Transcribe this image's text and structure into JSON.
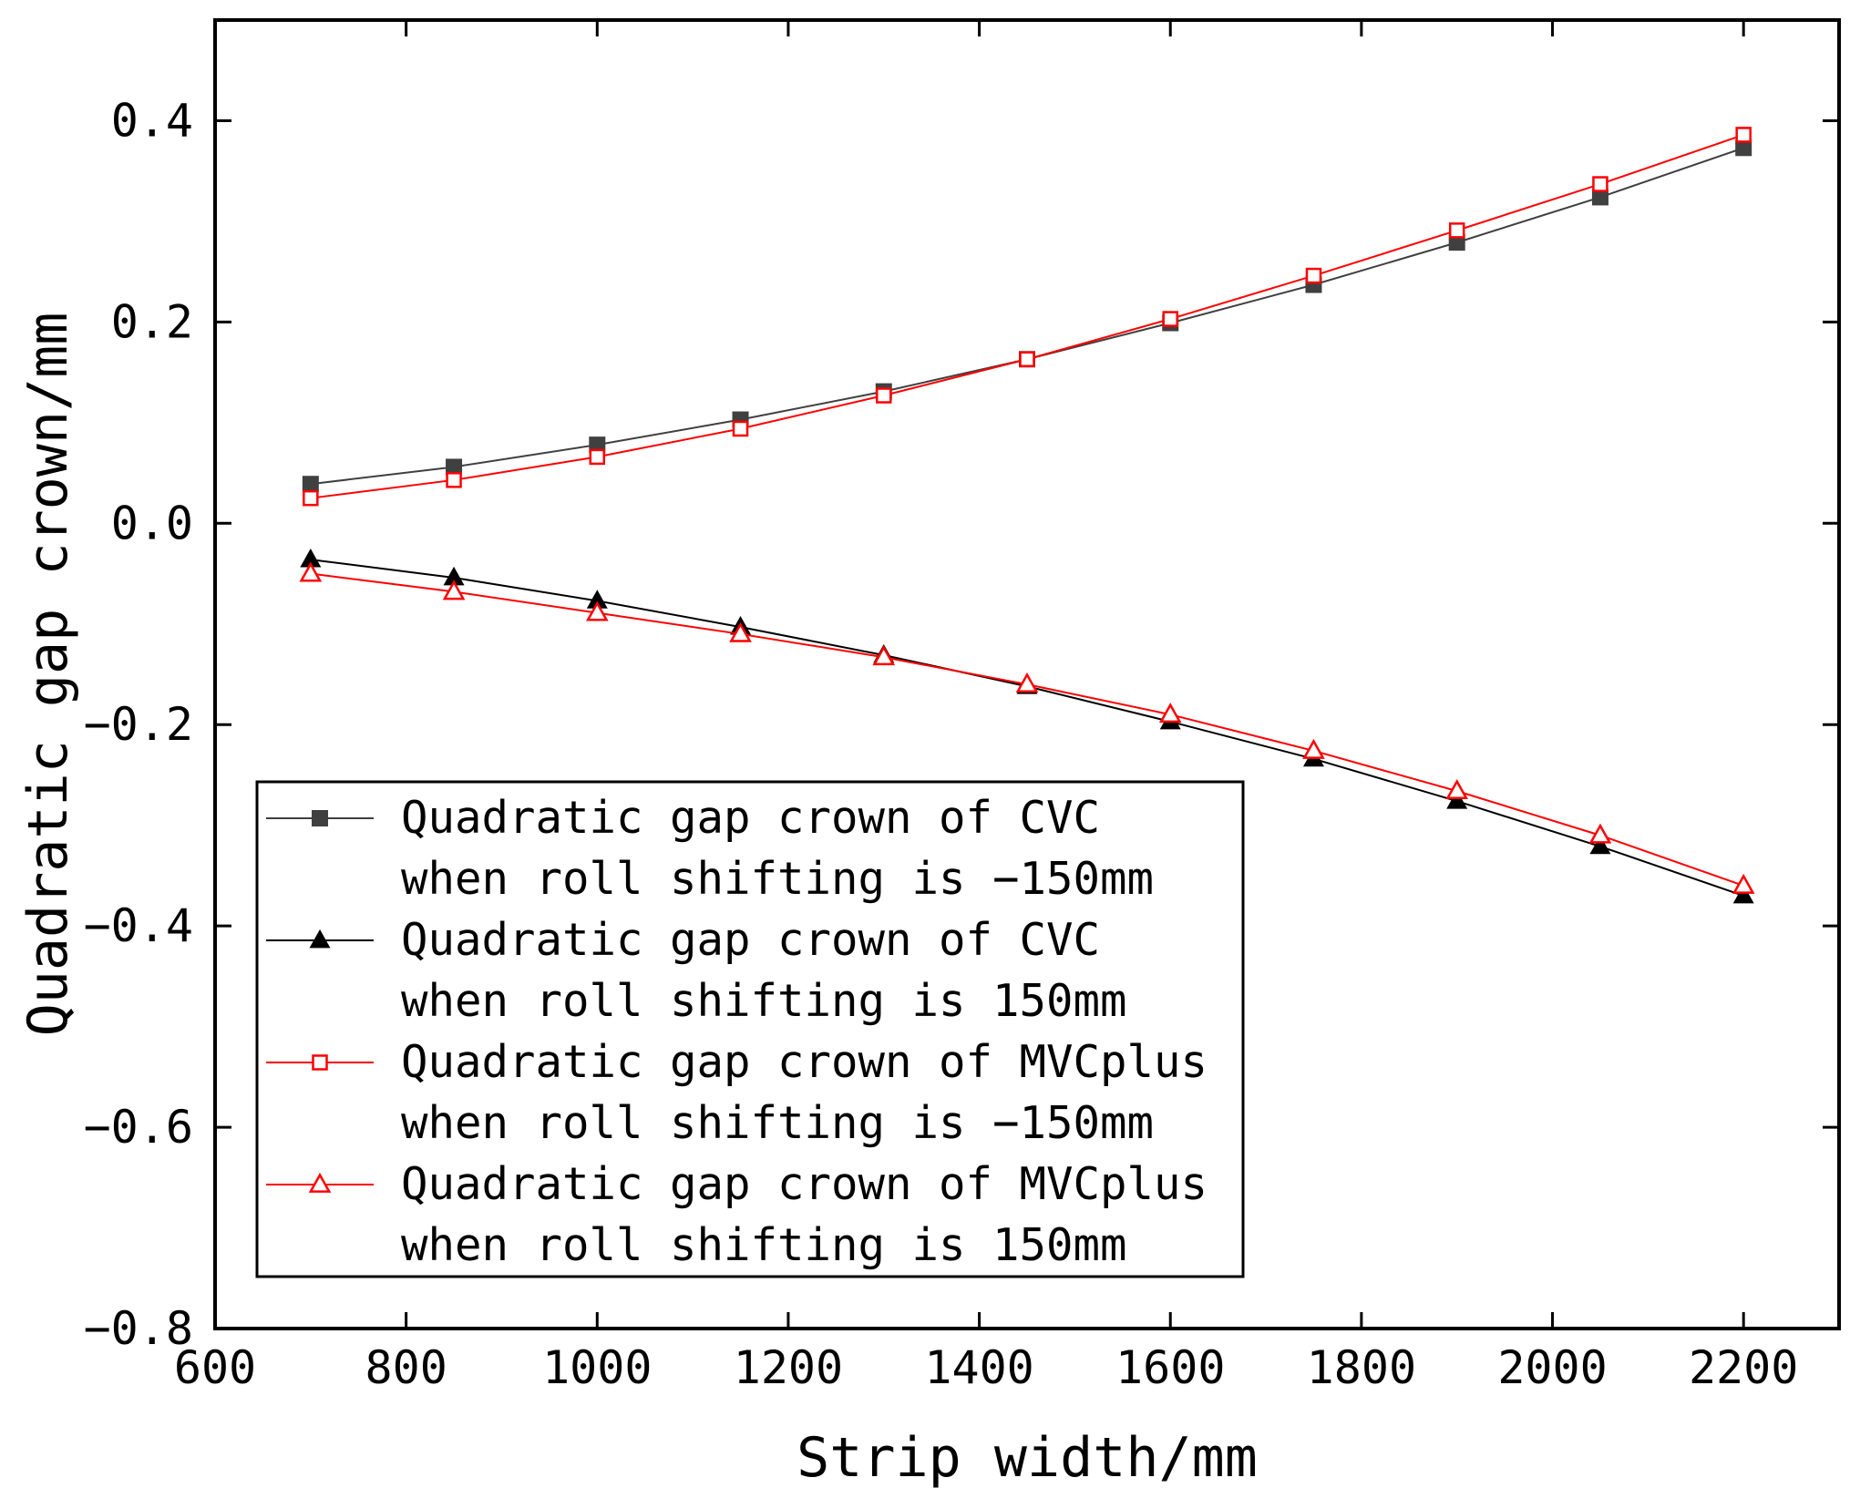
{
  "chart_data": {
    "type": "line",
    "title": "",
    "xlabel": "Strip width/mm",
    "ylabel": "Quadratic gap crown/mm",
    "xlim": [
      600,
      2300
    ],
    "ylim": [
      -0.8,
      0.5
    ],
    "xticks": [
      600,
      800,
      1000,
      1200,
      1400,
      1600,
      1800,
      2000,
      2200
    ],
    "yticks": [
      -0.8,
      -0.6,
      -0.4,
      -0.2,
      0.0,
      0.2,
      0.4
    ],
    "xtick_labels": [
      "600",
      "800",
      "1000",
      "1200",
      "1400",
      "1600",
      "1800",
      "2000",
      "2200"
    ],
    "ytick_labels": [
      "−0.8",
      "−0.6",
      "−0.4",
      "−0.2",
      "0.0",
      "0.2",
      "0.4"
    ],
    "grid": false,
    "legend_position": "bottom-left",
    "x": [
      700,
      850,
      1000,
      1150,
      1300,
      1450,
      1600,
      1750,
      1900,
      2050,
      2200
    ],
    "series": [
      {
        "name_line1": "Quadratic gap crown of CVC",
        "name_line2": "when roll shifting is −150mm",
        "color": "#404040",
        "marker": "square-filled",
        "values": [
          0.039,
          0.056,
          0.078,
          0.103,
          0.131,
          0.163,
          0.199,
          0.237,
          0.279,
          0.324,
          0.373
        ]
      },
      {
        "name_line1": "Quadratic gap crown of CVC",
        "name_line2": "when roll shifting is 150mm",
        "color": "#000000",
        "marker": "triangle-filled",
        "values": [
          -0.036,
          -0.054,
          -0.077,
          -0.103,
          -0.131,
          -0.162,
          -0.197,
          -0.234,
          -0.276,
          -0.321,
          -0.37
        ]
      },
      {
        "name_line1": "Quadratic gap crown of MVCplus",
        "name_line2": "when roll shifting is −150mm",
        "color": "#ff0000",
        "marker": "square-open",
        "values": [
          0.025,
          0.043,
          0.066,
          0.094,
          0.127,
          0.163,
          0.203,
          0.246,
          0.291,
          0.337,
          0.386
        ]
      },
      {
        "name_line1": "Quadratic gap crown of MVCplus",
        "name_line2": "when roll shifting is 150mm",
        "color": "#ff0000",
        "marker": "triangle-open",
        "values": [
          -0.05,
          -0.068,
          -0.089,
          -0.11,
          -0.133,
          -0.16,
          -0.19,
          -0.226,
          -0.266,
          -0.31,
          -0.36
        ]
      }
    ]
  }
}
